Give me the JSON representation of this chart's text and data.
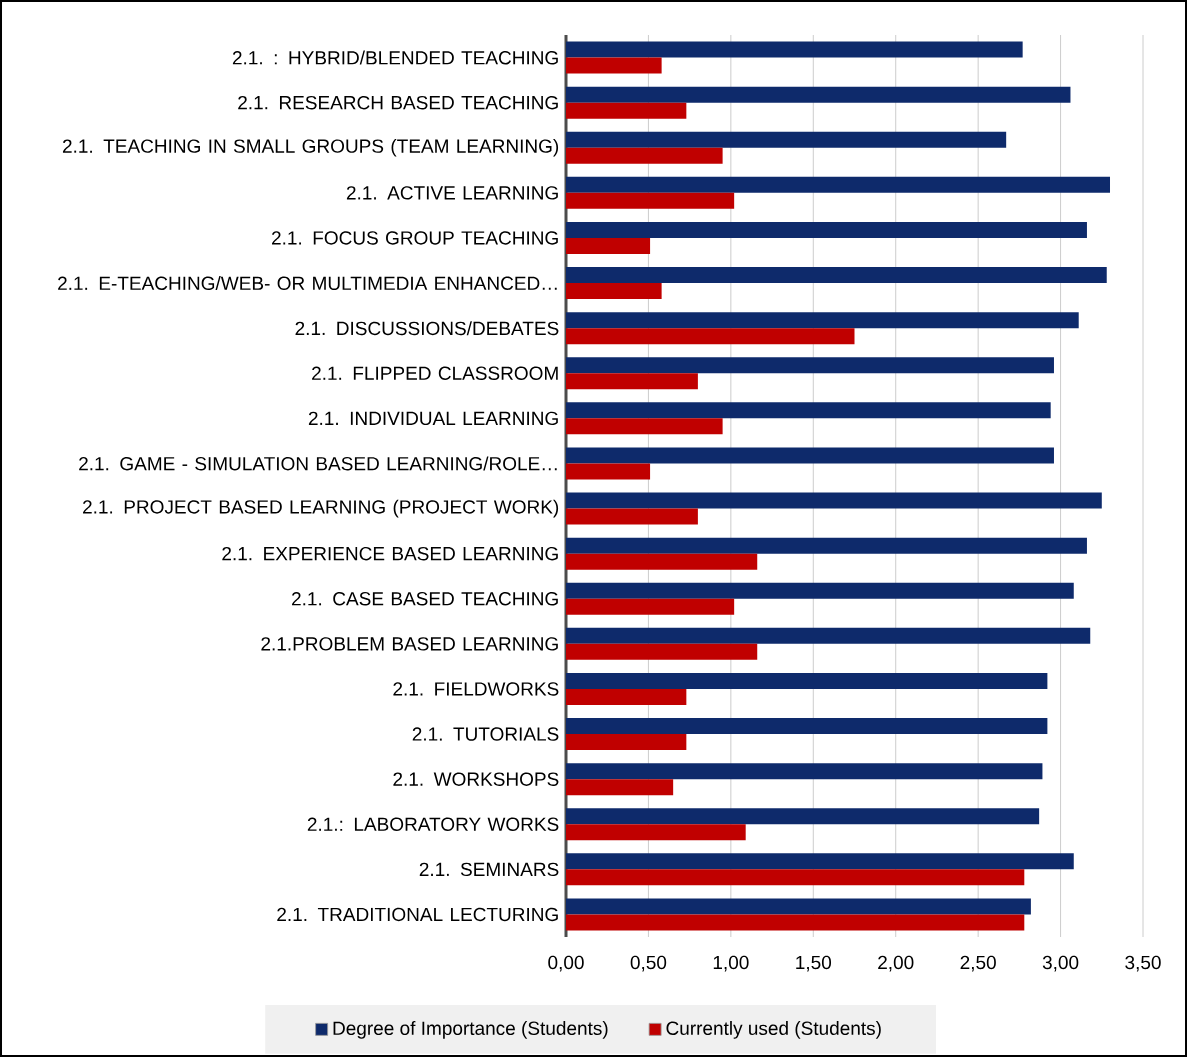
{
  "chart_data": {
    "type": "bar",
    "orientation": "horizontal",
    "categories": [
      "2.1. : HYBRID/BLENDED TEACHING",
      "2.1. RESEARCH BASED TEACHING",
      "2.1. TEACHING IN SMALL GROUPS (TEAM LEARNING)",
      "2.1. ACTIVE LEARNING",
      "2.1. FOCUS GROUP TEACHING",
      "2.1. E-TEACHING/WEB- OR MULTIMEDIA ENHANCED…",
      "2.1. DISCUSSIONS/DEBATES",
      "2.1. FLIPPED CLASSROOM",
      "2.1. INDIVIDUAL LEARNING",
      "2.1. GAME - SIMULATION BASED LEARNING/ROLE…",
      "2.1. PROJECT BASED LEARNING (PROJECT WORK)",
      "2.1. EXPERIENCE BASED LEARNING",
      "2.1. CASE BASED TEACHING",
      "2.1.PROBLEM BASED LEARNING",
      "2.1. FIELDWORKS",
      "2.1. TUTORIALS",
      "2.1. WORKSHOPS",
      "2.1.: LABORATORY WORKS",
      "2.1. SEMINARS",
      "2.1. TRADITIONAL LECTURING"
    ],
    "series": [
      {
        "name": "Degree of Importance (Students)",
        "color": "#0e2a6b",
        "values": [
          2.77,
          3.06,
          2.67,
          3.3,
          3.16,
          3.28,
          3.11,
          2.96,
          2.94,
          2.96,
          3.25,
          3.16,
          3.08,
          3.18,
          2.92,
          2.92,
          2.89,
          2.87,
          3.08,
          2.82
        ]
      },
      {
        "name": "Currently used (Students)",
        "color": "#c00000",
        "values": [
          0.58,
          0.73,
          0.95,
          1.02,
          0.51,
          0.58,
          1.75,
          0.8,
          0.95,
          0.51,
          0.8,
          1.16,
          1.02,
          1.16,
          0.73,
          0.73,
          0.65,
          1.09,
          2.78,
          2.78
        ]
      }
    ],
    "xlim": [
      0,
      3.5
    ],
    "xticks": [
      {
        "value": 0,
        "label": "0,00"
      },
      {
        "value": 0.5,
        "label": "0,50"
      },
      {
        "value": 1,
        "label": "1,00"
      },
      {
        "value": 1.5,
        "label": "1,50"
      },
      {
        "value": 2,
        "label": "2,00"
      },
      {
        "value": 2.5,
        "label": "2,50"
      },
      {
        "value": 3,
        "label": "3,00"
      },
      {
        "value": 3.5,
        "label": "3,50"
      }
    ],
    "grid": "x",
    "legend": "bottom"
  }
}
